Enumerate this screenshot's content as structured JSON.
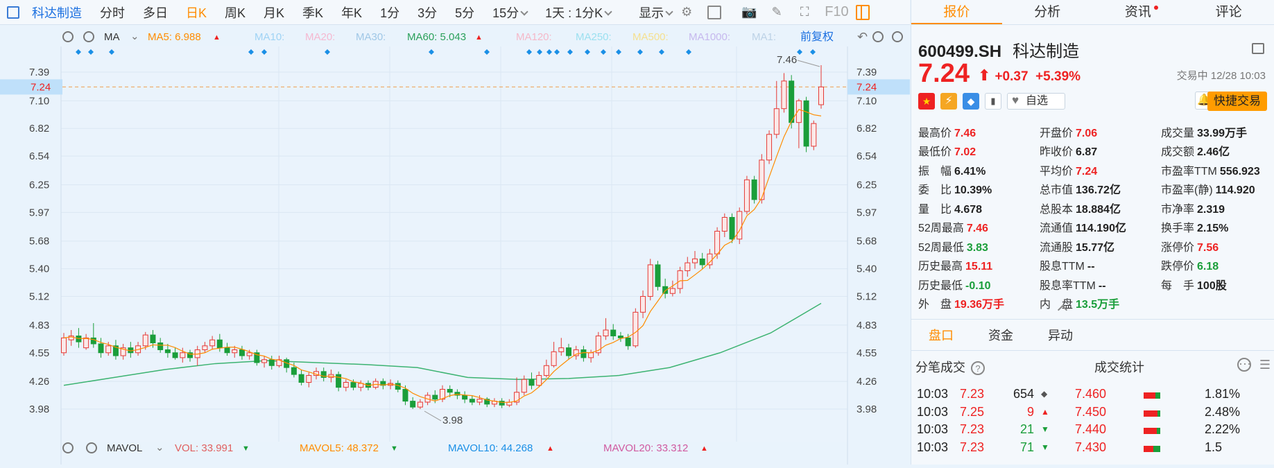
{
  "toolbar": {
    "name": "科达制造",
    "periods": [
      "分时",
      "多日",
      "日K",
      "周K",
      "月K",
      "季K",
      "年K",
      "1分",
      "3分",
      "5分",
      "15分"
    ],
    "active_period": "日K",
    "interval": "1天 : 1分K",
    "display": "显示",
    "f10": "F10"
  },
  "indicators": {
    "ma_label": "MA",
    "ma5": "MA5: 6.988",
    "ma10": "MA10:",
    "ma20": "MA20:",
    "ma30": "MA30:",
    "ma60": "MA60: 5.043",
    "ma120": "MA120:",
    "ma250": "MA250:",
    "ma500": "MA500:",
    "ma1000": "MA1000:",
    "ma1": "MA1:",
    "adjust": "前复权",
    "vol_label": "MAVOL",
    "vol": "VOL: 33.991",
    "mavol5": "MAVOL5: 48.372",
    "mavol10": "MAVOL10: 44.268",
    "mavol20": "MAVOL20: 33.312"
  },
  "chart_data": {
    "type": "candlestick",
    "y_ticks": [
      "7.39",
      "7.10",
      "6.82",
      "6.54",
      "6.25",
      "5.97",
      "5.68",
      "5.40",
      "5.12",
      "4.83",
      "4.55",
      "4.26",
      "3.98"
    ],
    "y_range": [
      3.82,
      7.5
    ],
    "current_price": "7.24",
    "high_annotation": "7.46",
    "low_annotation": "3.98",
    "candles": [
      [
        4.55,
        4.7,
        4.52,
        4.75
      ],
      [
        4.68,
        4.72,
        4.62,
        4.78
      ],
      [
        4.72,
        4.66,
        4.6,
        4.8
      ],
      [
        4.6,
        4.7,
        4.58,
        4.74
      ],
      [
        4.7,
        4.64,
        4.6,
        4.85
      ],
      [
        4.64,
        4.55,
        4.5,
        4.7
      ],
      [
        4.55,
        4.62,
        4.52,
        4.66
      ],
      [
        4.62,
        4.52,
        4.48,
        4.68
      ],
      [
        4.52,
        4.6,
        4.48,
        4.64
      ],
      [
        4.6,
        4.55,
        4.5,
        4.66
      ],
      [
        4.55,
        4.62,
        4.52,
        4.66
      ],
      [
        4.62,
        4.73,
        4.58,
        4.76
      ],
      [
        4.73,
        4.65,
        4.6,
        4.78
      ],
      [
        4.65,
        4.58,
        4.55,
        4.7
      ],
      [
        4.58,
        4.55,
        4.5,
        4.64
      ],
      [
        4.55,
        4.5,
        4.48,
        4.6
      ],
      [
        4.5,
        4.55,
        4.45,
        4.6
      ],
      [
        4.55,
        4.5,
        4.46,
        4.58
      ],
      [
        4.5,
        4.58,
        4.42,
        4.62
      ],
      [
        4.58,
        4.62,
        4.55,
        4.66
      ],
      [
        4.62,
        4.68,
        4.58,
        4.72
      ],
      [
        4.68,
        4.6,
        4.56,
        4.74
      ],
      [
        4.6,
        4.55,
        4.52,
        4.65
      ],
      [
        4.55,
        4.58,
        4.5,
        4.62
      ],
      [
        4.58,
        4.52,
        4.48,
        4.62
      ],
      [
        4.52,
        4.55,
        4.48,
        4.58
      ],
      [
        4.55,
        4.45,
        4.42,
        4.58
      ],
      [
        4.45,
        4.48,
        4.4,
        4.52
      ],
      [
        4.48,
        4.42,
        4.38,
        4.52
      ],
      [
        4.42,
        4.48,
        4.4,
        4.52
      ],
      [
        4.48,
        4.4,
        4.35,
        4.5
      ],
      [
        4.4,
        4.33,
        4.3,
        4.45
      ],
      [
        4.33,
        4.25,
        4.22,
        4.38
      ],
      [
        4.25,
        4.32,
        4.2,
        4.35
      ],
      [
        4.32,
        4.36,
        4.28,
        4.4
      ],
      [
        4.36,
        4.3,
        4.26,
        4.4
      ],
      [
        4.3,
        4.33,
        4.25,
        4.38
      ],
      [
        4.33,
        4.2,
        4.16,
        4.36
      ],
      [
        4.2,
        4.25,
        4.16,
        4.28
      ],
      [
        4.25,
        4.2,
        4.17,
        4.28
      ],
      [
        4.2,
        4.24,
        4.16,
        4.27
      ],
      [
        4.24,
        4.2,
        4.17,
        4.27
      ],
      [
        4.2,
        4.26,
        4.18,
        4.29
      ],
      [
        4.26,
        4.22,
        4.18,
        4.29
      ],
      [
        4.22,
        4.24,
        4.18,
        4.28
      ],
      [
        4.24,
        4.18,
        4.15,
        4.27
      ],
      [
        4.18,
        4.06,
        4.02,
        4.22
      ],
      [
        4.06,
        4.0,
        3.98,
        4.1
      ],
      [
        4.0,
        4.05,
        3.98,
        4.08
      ],
      [
        4.05,
        4.12,
        4.02,
        4.15
      ],
      [
        4.12,
        4.08,
        4.04,
        4.17
      ],
      [
        4.08,
        4.18,
        4.05,
        4.22
      ],
      [
        4.18,
        4.15,
        4.1,
        4.22
      ],
      [
        4.15,
        4.12,
        4.08,
        4.18
      ],
      [
        4.12,
        4.08,
        4.04,
        4.16
      ],
      [
        4.08,
        4.05,
        4.02,
        4.12
      ],
      [
        4.05,
        4.08,
        4.02,
        4.12
      ],
      [
        4.08,
        4.03,
        4.0,
        4.1
      ],
      [
        4.03,
        4.06,
        4.0,
        4.09
      ],
      [
        4.06,
        4.02,
        3.99,
        4.09
      ],
      [
        4.02,
        4.05,
        4.0,
        4.08
      ],
      [
        4.05,
        4.15,
        4.02,
        4.3
      ],
      [
        4.15,
        4.28,
        4.12,
        4.32
      ],
      [
        4.28,
        4.22,
        4.18,
        4.35
      ],
      [
        4.22,
        4.32,
        4.2,
        4.36
      ],
      [
        4.32,
        4.42,
        4.3,
        4.48
      ],
      [
        4.42,
        4.56,
        4.4,
        4.66
      ],
      [
        4.56,
        4.6,
        4.52,
        4.7
      ],
      [
        4.6,
        4.52,
        4.48,
        4.64
      ],
      [
        4.52,
        4.58,
        4.48,
        4.62
      ],
      [
        4.58,
        4.5,
        4.46,
        4.62
      ],
      [
        4.5,
        4.55,
        4.45,
        4.58
      ],
      [
        4.55,
        4.72,
        4.52,
        4.76
      ],
      [
        4.72,
        4.78,
        4.68,
        4.9
      ],
      [
        4.78,
        4.72,
        4.68,
        4.84
      ],
      [
        4.72,
        4.7,
        4.66,
        4.76
      ],
      [
        4.7,
        4.62,
        4.58,
        4.74
      ],
      [
        4.62,
        4.96,
        4.6,
        5.0
      ],
      [
        4.96,
        5.12,
        4.9,
        5.18
      ],
      [
        5.12,
        5.44,
        5.08,
        5.5
      ],
      [
        5.44,
        5.22,
        5.18,
        5.48
      ],
      [
        5.22,
        5.15,
        5.1,
        5.3
      ],
      [
        5.15,
        5.2,
        5.12,
        5.28
      ],
      [
        5.2,
        5.38,
        5.15,
        5.42
      ],
      [
        5.38,
        5.46,
        5.32,
        5.52
      ],
      [
        5.46,
        5.5,
        5.4,
        5.58
      ],
      [
        5.5,
        5.44,
        5.4,
        5.56
      ],
      [
        5.44,
        5.55,
        5.4,
        5.6
      ],
      [
        5.55,
        5.78,
        5.5,
        5.82
      ],
      [
        5.78,
        5.92,
        5.72,
        5.96
      ],
      [
        5.92,
        5.7,
        5.66,
        5.96
      ],
      [
        5.7,
        5.98,
        5.65,
        6.02
      ],
      [
        5.98,
        6.3,
        5.95,
        6.34
      ],
      [
        6.3,
        6.1,
        6.06,
        6.34
      ],
      [
        6.1,
        6.5,
        6.06,
        6.56
      ],
      [
        6.5,
        6.76,
        6.46,
        6.8
      ],
      [
        6.76,
        7.02,
        6.72,
        7.3
      ],
      [
        7.02,
        7.3,
        6.98,
        7.38
      ],
      [
        7.3,
        6.88,
        6.82,
        7.36
      ],
      [
        6.88,
        7.1,
        6.62,
        7.12
      ],
      [
        7.1,
        6.64,
        6.58,
        7.14
      ],
      [
        6.64,
        6.87,
        6.6,
        6.9
      ],
      [
        7.06,
        7.24,
        7.02,
        7.46
      ]
    ],
    "ma_slow_y": [
      4.22,
      4.3,
      4.38,
      4.44,
      4.47,
      4.45,
      4.43,
      4.4,
      4.3,
      4.28,
      4.29,
      4.32,
      4.4,
      4.55,
      4.75,
      5.05
    ]
  },
  "quote": {
    "code": "600499.SH",
    "name": "科达制造",
    "price": "7.24",
    "change": "+0.37",
    "pct": "+5.39%",
    "status": "交易中 12/28 10:03",
    "fav": "自选",
    "trade_button": "快捷交易"
  },
  "tabs": [
    "报价",
    "分析",
    "资讯",
    "评论"
  ],
  "stats": [
    [
      {
        "k": "最高价",
        "v": "7.46",
        "c": "up"
      },
      {
        "k": "开盘价",
        "v": "7.06",
        "c": "up"
      },
      {
        "k": "成交量",
        "v": "33.99万手",
        "c": "nt"
      }
    ],
    [
      {
        "k": "最低价",
        "v": "7.02",
        "c": "up"
      },
      {
        "k": "昨收价",
        "v": "6.87",
        "c": "nt"
      },
      {
        "k": "成交额",
        "v": "2.46亿",
        "c": "nt"
      }
    ],
    [
      {
        "k": "振　幅",
        "v": "6.41%",
        "c": "nt"
      },
      {
        "k": "平均价",
        "v": "7.24",
        "c": "up"
      },
      {
        "k": "市盈率TTM",
        "v": "556.923",
        "c": "nt"
      }
    ],
    [
      {
        "k": "委　比",
        "v": "10.39%",
        "c": "nt"
      },
      {
        "k": "总市值",
        "v": "136.72亿",
        "c": "nt"
      },
      {
        "k": "市盈率(静)",
        "v": "114.920",
        "c": "nt"
      }
    ],
    [
      {
        "k": "量　比",
        "v": "4.678",
        "c": "nt"
      },
      {
        "k": "总股本",
        "v": "18.884亿",
        "c": "nt"
      },
      {
        "k": "市净率",
        "v": "2.319",
        "c": "nt"
      }
    ],
    [
      {
        "k": "52周最高",
        "v": "7.46",
        "c": "up"
      },
      {
        "k": "流通值",
        "v": "114.190亿",
        "c": "nt"
      },
      {
        "k": "换手率",
        "v": "2.15%",
        "c": "nt"
      }
    ],
    [
      {
        "k": "52周最低",
        "v": "3.83",
        "c": "dn"
      },
      {
        "k": "流通股",
        "v": "15.77亿",
        "c": "nt"
      },
      {
        "k": "涨停价",
        "v": "7.56",
        "c": "up"
      }
    ],
    [
      {
        "k": "历史最高",
        "v": "15.11",
        "c": "up"
      },
      {
        "k": "股息TTM",
        "v": "--",
        "c": "nt"
      },
      {
        "k": "跌停价",
        "v": "6.18",
        "c": "dn"
      }
    ],
    [
      {
        "k": "历史最低",
        "v": "-0.10",
        "c": "dn"
      },
      {
        "k": "股息率TTM",
        "v": "--",
        "c": "nt"
      },
      {
        "k": "每　手",
        "v": "100股",
        "c": "nt"
      }
    ],
    [
      {
        "k": "外　盘",
        "v": "19.36万手",
        "c": "up"
      },
      {
        "k": "内　盘",
        "v": "13.5万手",
        "c": "dn"
      },
      {
        "k": "",
        "v": "",
        "c": "nt"
      }
    ]
  ],
  "subtabs": [
    "盘口",
    "资金",
    "异动"
  ],
  "ticks_title": "分笔成交",
  "stat_title": "成交统计",
  "ticks": [
    {
      "t": "10:03",
      "p": "7.23",
      "v": "654",
      "d": "◆",
      "c": "nt"
    },
    {
      "t": "10:03",
      "p": "7.25",
      "v": "9",
      "d": "▲",
      "c": "up"
    },
    {
      "t": "10:03",
      "p": "7.23",
      "v": "21",
      "d": "▼",
      "c": "dn"
    },
    {
      "t": "10:03",
      "p": "7.23",
      "v": "71",
      "d": "▼",
      "c": "dn"
    }
  ],
  "dist": [
    {
      "p": "7.460",
      "pct": "1.81%",
      "fill": 0.7
    },
    {
      "p": "7.450",
      "pct": "2.48%",
      "fill": 0.85
    },
    {
      "p": "7.440",
      "pct": "2.22%",
      "fill": 0.8
    },
    {
      "p": "7.430",
      "pct": "1.5",
      "fill": 0.6
    }
  ]
}
